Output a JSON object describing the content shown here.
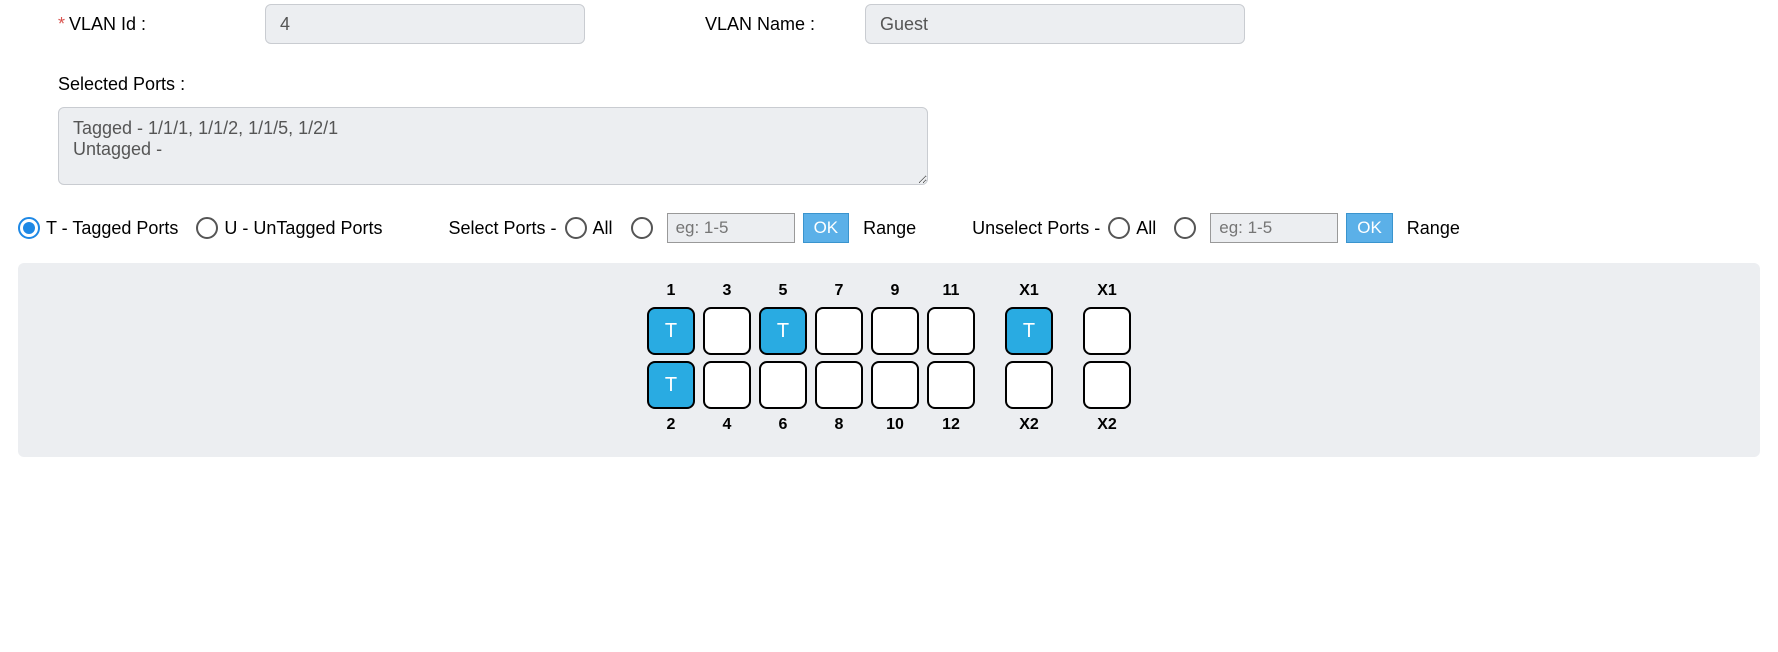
{
  "form": {
    "vlan_id_label": "VLAN Id :",
    "vlan_id_value": "4",
    "vlan_name_label": "VLAN Name :",
    "vlan_name_value": "Guest",
    "required_mark": "*"
  },
  "selected_ports": {
    "label": "Selected Ports :",
    "text": "Tagged - 1/1/1, 1/1/2, 1/1/5, 1/2/1\nUntagged -"
  },
  "radios": {
    "tagged_label": "T - Tagged Ports",
    "untagged_label": "U - UnTagged Ports",
    "selected": "tagged"
  },
  "select_ports": {
    "prefix": "Select Ports -",
    "all_label": "All",
    "range_placeholder": "eg: 1-5",
    "ok": "OK",
    "range_label": "Range"
  },
  "unselect_ports": {
    "prefix": "Unselect Ports -",
    "all_label": "All",
    "range_placeholder": "eg: 1-5",
    "ok": "OK",
    "range_label": "Range"
  },
  "ports": {
    "tagged_glyph": "T",
    "group1": {
      "cols": [
        {
          "top_label": "1",
          "top_state": "tagged",
          "bot_label": "2",
          "bot_state": "tagged"
        },
        {
          "top_label": "3",
          "top_state": "",
          "bot_label": "4",
          "bot_state": ""
        },
        {
          "top_label": "5",
          "top_state": "tagged",
          "bot_label": "6",
          "bot_state": ""
        },
        {
          "top_label": "7",
          "top_state": "",
          "bot_label": "8",
          "bot_state": ""
        },
        {
          "top_label": "9",
          "top_state": "",
          "bot_label": "10",
          "bot_state": ""
        },
        {
          "top_label": "11",
          "top_state": "",
          "bot_label": "12",
          "bot_state": ""
        }
      ]
    },
    "group2": {
      "cols": [
        {
          "top_label": "X1",
          "top_state": "tagged",
          "bot_label": "X2",
          "bot_state": ""
        }
      ]
    },
    "group3": {
      "cols": [
        {
          "top_label": "X1",
          "top_state": "",
          "bot_label": "X2",
          "bot_state": ""
        }
      ]
    }
  },
  "colors": {
    "tagged_bg": "#29abe2",
    "panel_bg": "#eceef1",
    "ok_bg": "#5bb0e8",
    "radio_selected": "#1e88e5"
  }
}
